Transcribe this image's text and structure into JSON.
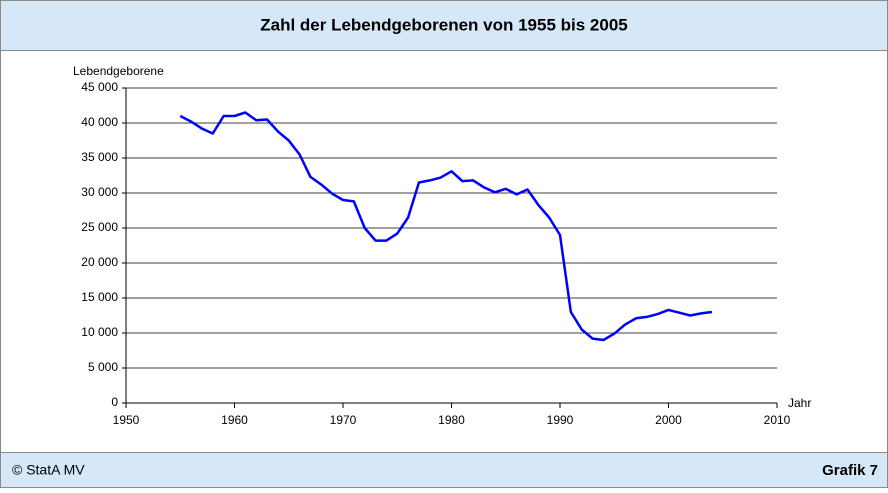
{
  "chart_data": {
    "type": "line",
    "title": "Zahl der Lebendgeborenen von 1955 bis 2005",
    "y_label": "Lebendgeborene",
    "x_label": "Jahr",
    "footer_left": "© StatA MV",
    "footer_right": "Grafik 7",
    "x": [
      1955,
      1956,
      1957,
      1958,
      1959,
      1960,
      1961,
      1962,
      1963,
      1964,
      1965,
      1966,
      1967,
      1968,
      1969,
      1970,
      1971,
      1972,
      1973,
      1974,
      1975,
      1976,
      1977,
      1978,
      1979,
      1980,
      1981,
      1982,
      1983,
      1984,
      1985,
      1986,
      1987,
      1988,
      1989,
      1990,
      1991,
      1992,
      1993,
      1994,
      1995,
      1996,
      1997,
      1998,
      1999,
      2000,
      2001,
      2002,
      2003,
      2004
    ],
    "series": [
      {
        "name": "Lebendgeborene",
        "color": "#0000ff",
        "values": [
          41000,
          40200,
          39200,
          38500,
          41000,
          41000,
          41500,
          40400,
          40500,
          38800,
          37500,
          35500,
          32300,
          31200,
          29900,
          29000,
          28800,
          25000,
          23200,
          23200,
          24200,
          26500,
          31500,
          31800,
          32200,
          33100,
          31700,
          31800,
          30800,
          30100,
          30600,
          29800,
          30500,
          28300,
          26500,
          24000,
          13000,
          10500,
          9200,
          9000,
          9900,
          11200,
          12100,
          12300,
          12700,
          13300,
          12900,
          12500,
          12800,
          13000
        ]
      }
    ],
    "xlim": [
      1950,
      2010
    ],
    "xticks": [
      1950,
      1960,
      1970,
      1980,
      1990,
      2000,
      2010
    ],
    "ylim": [
      0,
      45000
    ],
    "yticks": [
      {
        "value": 0,
        "label": "0"
      },
      {
        "value": 5000,
        "label": "5 000"
      },
      {
        "value": 10000,
        "label": "10 000"
      },
      {
        "value": 15000,
        "label": "15 000"
      },
      {
        "value": 20000,
        "label": "20 000"
      },
      {
        "value": 25000,
        "label": "25 000"
      },
      {
        "value": 30000,
        "label": "30 000"
      },
      {
        "value": 35000,
        "label": "35 000"
      },
      {
        "value": 40000,
        "label": "40 000"
      },
      {
        "value": 45000,
        "label": "45 000"
      }
    ],
    "grid": true
  }
}
